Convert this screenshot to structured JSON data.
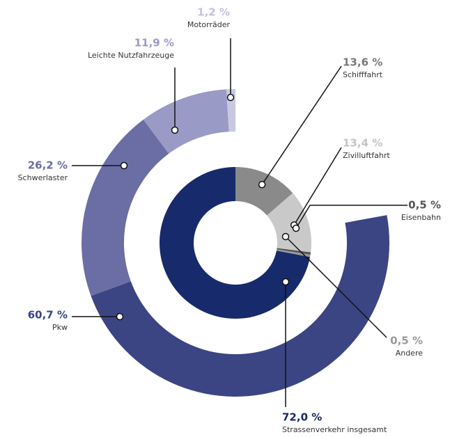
{
  "chart_data": {
    "type": "nested-donut",
    "inner": {
      "categories": [
        "Schifffahrt",
        "Zivilluftfahrt",
        "Eisenbahn",
        "Andere",
        "Strassenverkehr insgesamt"
      ],
      "values": [
        13.6,
        13.4,
        0.5,
        0.5,
        72.0
      ],
      "value_labels": [
        "13,6 %",
        "13,4 %",
        "0,5 %",
        "0,5 %",
        "72,0 %"
      ],
      "colors": [
        "#8a8a8a",
        "#c9c9c9",
        "#555555",
        "#9a9a9a",
        "#172a6b"
      ],
      "label_colors": [
        "#777777",
        "#c4c4c4",
        "#555555",
        "#999999",
        "#172a6b"
      ]
    },
    "outer": {
      "categories": [
        "Pkw",
        "Schwerlaster",
        "Leichte Nutzfahrzeuge",
        "Motorräder"
      ],
      "values": [
        60.7,
        26.2,
        11.9,
        1.2
      ],
      "value_labels": [
        "60,7 %",
        "26,2 %",
        "11,9 %",
        "1,2 %"
      ],
      "colors": [
        "#3b4583",
        "#6a6ea4",
        "#9a9ac7",
        "#c8c8e2"
      ],
      "label_colors": [
        "#3b4583",
        "#6a6ea4",
        "#9a9ac7",
        "#c0c0de"
      ]
    }
  }
}
